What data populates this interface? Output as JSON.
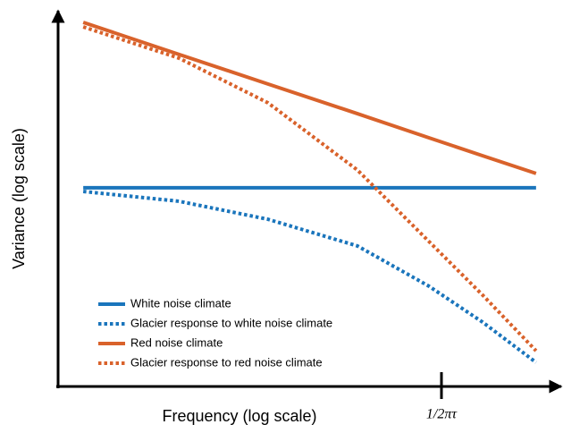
{
  "chart_data": {
    "type": "line",
    "x_label": "Frequency (log scale)",
    "y_label": "Variance (log scale)",
    "x": [
      0.05,
      0.24,
      0.417,
      0.595,
      0.737,
      0.844,
      0.95
    ],
    "xlim": [
      0,
      1
    ],
    "ylim": [
      0,
      1
    ],
    "xticks": [
      {
        "value": 0.762,
        "label": "1/2πτ"
      }
    ],
    "legend": "lower left",
    "series": [
      {
        "name": "White noise climate",
        "color": "#1a75bc",
        "style": "solid",
        "values": [
          0.529,
          0.529,
          0.529,
          0.529,
          0.529,
          0.529,
          0.529
        ]
      },
      {
        "name": "Glacier response to white noise climate",
        "color": "#1a75bc",
        "style": "dotted",
        "values": [
          0.519,
          0.493,
          0.445,
          0.374,
          0.267,
          0.171,
          0.064
        ]
      },
      {
        "name": "Red noise climate",
        "color": "#d9622b",
        "style": "solid",
        "values": [
          0.969,
          0.884,
          0.805,
          0.726,
          0.662,
          0.614,
          0.567
        ]
      },
      {
        "name": "Glacier response to red noise climate",
        "color": "#d9622b",
        "style": "dotted",
        "values": [
          0.957,
          0.874,
          0.755,
          0.576,
          0.386,
          0.243,
          0.095
        ]
      }
    ]
  }
}
